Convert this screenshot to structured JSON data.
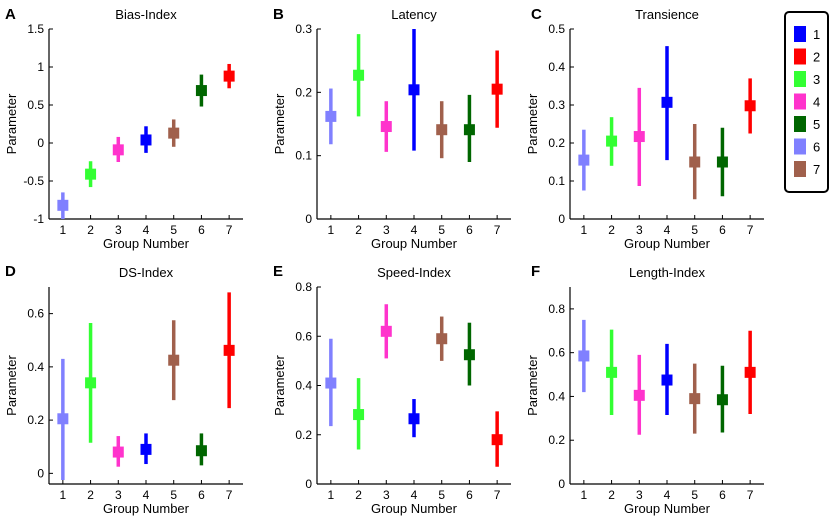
{
  "colors": {
    "1": "#0000ff",
    "2": "#ff0000",
    "3": "#33ff33",
    "4": "#ff33cc",
    "5": "#006600",
    "6": "#8080ff",
    "7": "#a0604c"
  },
  "legend": {
    "entries": [
      {
        "label": "1",
        "color": "#0000ff"
      },
      {
        "label": "2",
        "color": "#ff0000"
      },
      {
        "label": "3",
        "color": "#33ff33"
      },
      {
        "label": "4",
        "color": "#ff33cc"
      },
      {
        "label": "5",
        "color": "#006600"
      },
      {
        "label": "6",
        "color": "#8080ff"
      },
      {
        "label": "7",
        "color": "#a0604c"
      }
    ]
  },
  "chart_data": [
    {
      "panel": "A",
      "type": "scatter",
      "title": "Bias-Index",
      "xlabel": "Group Number",
      "ylabel": "Parameter",
      "xlim": [
        0.5,
        7.5
      ],
      "ylim": [
        -1,
        1.5
      ],
      "yticks": [
        -1,
        -0.5,
        0,
        0.5,
        1,
        1.5
      ],
      "ytick_labels": [
        "-1",
        "-0.5",
        "0",
        "0.5",
        "1",
        "1.5"
      ],
      "x": [
        1,
        2,
        3,
        4,
        5,
        6,
        7
      ],
      "series_order": [
        "6",
        "3",
        "4",
        "1",
        "7",
        "5",
        "2"
      ],
      "values": [
        -0.82,
        -0.41,
        -0.09,
        0.04,
        0.13,
        0.69,
        0.88
      ],
      "err_low": [
        -1.0,
        -0.58,
        -0.25,
        -0.13,
        -0.05,
        0.48,
        0.72
      ],
      "err_high": [
        -0.65,
        -0.24,
        0.08,
        0.22,
        0.31,
        0.9,
        1.04
      ]
    },
    {
      "panel": "B",
      "type": "scatter",
      "title": "Latency",
      "xlabel": "Group Number",
      "ylabel": "Parameter",
      "xlim": [
        0.5,
        7.5
      ],
      "ylim": [
        0,
        0.3
      ],
      "yticks": [
        0,
        0.1,
        0.2,
        0.3
      ],
      "ytick_labels": [
        "0",
        "0.1",
        "0.2",
        "0.3"
      ],
      "x": [
        1,
        2,
        3,
        4,
        5,
        6,
        7
      ],
      "series_order": [
        "6",
        "3",
        "4",
        "1",
        "7",
        "5",
        "2"
      ],
      "values": [
        0.162,
        0.227,
        0.146,
        0.204,
        0.141,
        0.141,
        0.205
      ],
      "err_low": [
        0.118,
        0.162,
        0.106,
        0.108,
        0.096,
        0.09,
        0.144
      ],
      "err_high": [
        0.206,
        0.292,
        0.186,
        0.3,
        0.186,
        0.196,
        0.266
      ]
    },
    {
      "panel": "C",
      "type": "scatter",
      "title": "Transience",
      "xlabel": "Group Number",
      "ylabel": "Parameter",
      "xlim": [
        0.5,
        7.5
      ],
      "ylim": [
        0,
        0.5
      ],
      "yticks": [
        0,
        0.1,
        0.2,
        0.3,
        0.4,
        0.5
      ],
      "ytick_labels": [
        "0",
        "0.1",
        "0.2",
        "0.3",
        "0.4",
        "0.5"
      ],
      "x": [
        1,
        2,
        3,
        4,
        5,
        6,
        7
      ],
      "series_order": [
        "6",
        "3",
        "4",
        "1",
        "7",
        "5",
        "2"
      ],
      "values": [
        0.155,
        0.205,
        0.217,
        0.307,
        0.15,
        0.15,
        0.298
      ],
      "err_low": [
        0.075,
        0.14,
        0.087,
        0.155,
        0.052,
        0.06,
        0.225
      ],
      "err_high": [
        0.235,
        0.268,
        0.345,
        0.455,
        0.25,
        0.24,
        0.37
      ]
    },
    {
      "panel": "D",
      "type": "scatter",
      "title": "DS-Index",
      "xlabel": "Group Number",
      "ylabel": "Parameter",
      "xlim": [
        0.5,
        7.5
      ],
      "ylim": [
        -0.04,
        0.7
      ],
      "yticks": [
        0,
        0.2,
        0.4,
        0.6
      ],
      "ytick_labels": [
        "0",
        "0.2",
        "0.4",
        "0.6"
      ],
      "x": [
        1,
        2,
        3,
        4,
        5,
        6,
        7
      ],
      "series_order": [
        "6",
        "3",
        "4",
        "1",
        "7",
        "5",
        "2"
      ],
      "values": [
        0.205,
        0.34,
        0.08,
        0.09,
        0.425,
        0.085,
        0.462
      ],
      "err_low": [
        -0.025,
        0.115,
        0.025,
        0.035,
        0.275,
        0.03,
        0.245
      ],
      "err_high": [
        0.43,
        0.565,
        0.14,
        0.15,
        0.575,
        0.15,
        0.68
      ]
    },
    {
      "panel": "E",
      "type": "scatter",
      "title": "Speed-Index",
      "xlabel": "Group Number",
      "ylabel": "Parameter",
      "xlim": [
        0.5,
        7.5
      ],
      "ylim": [
        0,
        0.8
      ],
      "yticks": [
        0,
        0.2,
        0.4,
        0.6,
        0.8
      ],
      "ytick_labels": [
        "0",
        "0.2",
        "0.4",
        "0.6",
        "0.8"
      ],
      "x": [
        1,
        2,
        3,
        4,
        5,
        6,
        7
      ],
      "series_order": [
        "6",
        "3",
        "4",
        "1",
        "7",
        "5",
        "2"
      ],
      "values": [
        0.41,
        0.282,
        0.62,
        0.265,
        0.59,
        0.525,
        0.18
      ],
      "err_low": [
        0.235,
        0.14,
        0.51,
        0.19,
        0.5,
        0.4,
        0.07
      ],
      "err_high": [
        0.59,
        0.43,
        0.73,
        0.345,
        0.68,
        0.655,
        0.295
      ]
    },
    {
      "panel": "F",
      "type": "scatter",
      "title": "Length-Index",
      "xlabel": "Group Number",
      "ylabel": "Parameter",
      "xlim": [
        0.5,
        7.5
      ],
      "ylim": [
        0,
        0.9
      ],
      "yticks": [
        0,
        0.2,
        0.4,
        0.6,
        0.8
      ],
      "ytick_labels": [
        "0",
        "0.2",
        "0.4",
        "0.6",
        "0.8"
      ],
      "x": [
        1,
        2,
        3,
        4,
        5,
        6,
        7
      ],
      "series_order": [
        "6",
        "3",
        "4",
        "1",
        "7",
        "5",
        "2"
      ],
      "values": [
        0.585,
        0.51,
        0.405,
        0.475,
        0.39,
        0.385,
        0.51
      ],
      "err_low": [
        0.42,
        0.315,
        0.225,
        0.315,
        0.23,
        0.235,
        0.32
      ],
      "err_high": [
        0.75,
        0.705,
        0.59,
        0.64,
        0.55,
        0.54,
        0.7
      ]
    }
  ]
}
